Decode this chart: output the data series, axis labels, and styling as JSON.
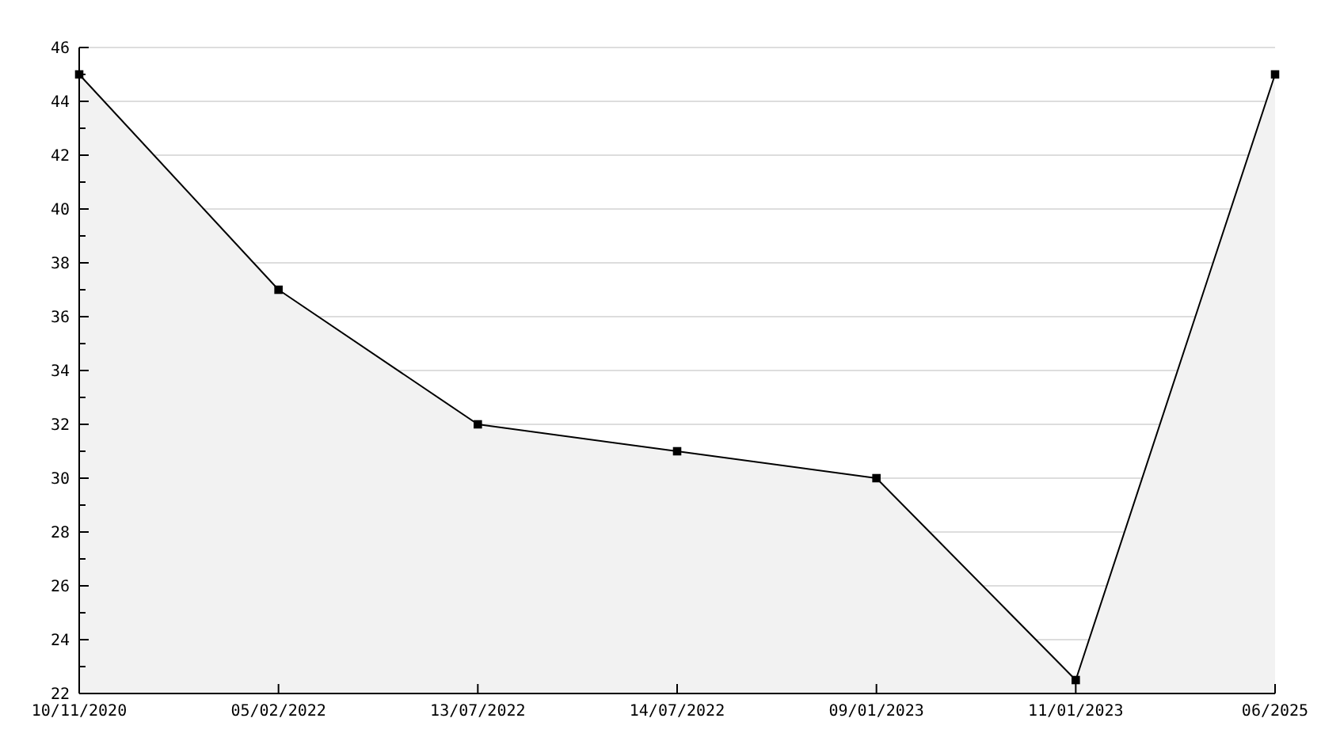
{
  "chart_data": {
    "type": "area",
    "categories": [
      "10/11/2020",
      "05/02/2022",
      "13/07/2022",
      "14/07/2022",
      "09/01/2023",
      "11/01/2023",
      "06/2025"
    ],
    "series": [
      {
        "color": "#000000",
        "values": [
          45,
          37,
          32,
          31,
          30,
          22.5,
          45
        ]
      }
    ],
    "ylim": [
      22,
      46
    ],
    "yticks": [
      22,
      {
        "value": 23,
        "label": null
      },
      24,
      {
        "value": 25,
        "label": null
      },
      26,
      {
        "value": 27,
        "label": null
      },
      28,
      {
        "value": 29,
        "label": null
      },
      30,
      {
        "value": 31,
        "label": null
      },
      32,
      {
        "value": 33,
        "label": null
      },
      34,
      {
        "value": 35,
        "label": null
      },
      36,
      {
        "value": 37,
        "label": null
      },
      38,
      {
        "value": 39,
        "label": null
      },
      40,
      {
        "value": 41,
        "label": null
      },
      42,
      {
        "value": 43,
        "label": null
      },
      44,
      {
        "value": 45,
        "label": null
      },
      46
    ],
    "grid": "y",
    "marker": "square",
    "line_style": "solid"
  }
}
